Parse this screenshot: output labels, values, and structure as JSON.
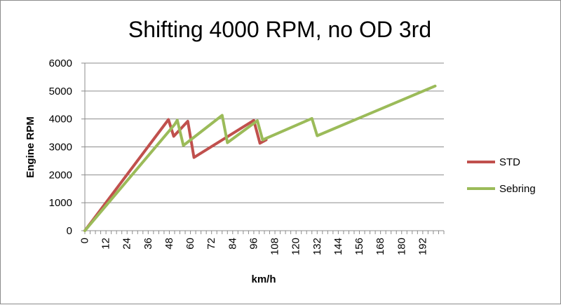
{
  "chart_data": {
    "type": "line",
    "title": "Shifting 4000 RPM, no OD 3rd",
    "xlabel": "km/h",
    "ylabel": "Engine RPM",
    "xlim": [
      0,
      204
    ],
    "ylim": [
      0,
      6000
    ],
    "x_ticks": [
      0,
      12,
      24,
      36,
      48,
      60,
      72,
      84,
      96,
      108,
      120,
      132,
      144,
      156,
      168,
      180,
      192
    ],
    "y_ticks": [
      0,
      1000,
      2000,
      3000,
      4000,
      5000,
      6000
    ],
    "grid": "horizontal",
    "legend_position": "right",
    "series": [
      {
        "name": "STD",
        "color": "#c0504d",
        "x": [
          0,
          47.5,
          50.5,
          58.5,
          62,
          96,
          99.5,
          103
        ],
        "y": [
          0,
          3980,
          3380,
          3920,
          2620,
          3950,
          3130,
          3250
        ]
      },
      {
        "name": "Sebring",
        "color": "#9bbb59",
        "x": [
          0,
          51,
          52.5,
          56,
          78,
          81,
          98,
          101,
          129,
          132,
          199
        ],
        "y": [
          0,
          3800,
          3960,
          3050,
          4130,
          3150,
          3940,
          3250,
          4020,
          3400,
          5180
        ]
      }
    ]
  }
}
